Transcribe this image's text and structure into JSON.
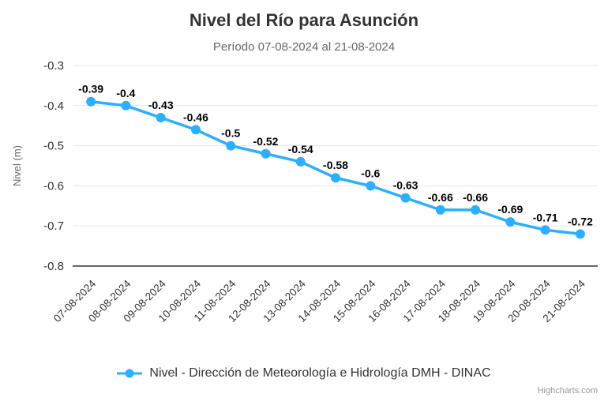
{
  "chart_data": {
    "type": "line",
    "title": "Nivel del Río para Asunción",
    "subtitle": "Período 07-08-2024 al 21-08-2024",
    "ylabel": "Nivel (m)",
    "xlabel": "",
    "categories": [
      "07-08-2024",
      "08-08-2024",
      "09-08-2024",
      "10-08-2024",
      "11-08-2024",
      "12-08-2024",
      "13-08-2024",
      "14-08-2024",
      "15-08-2024",
      "16-08-2024",
      "17-08-2024",
      "18-08-2024",
      "19-08-2024",
      "20-08-2024",
      "21-08-2024"
    ],
    "series": [
      {
        "name": "Nivel - Dirección de Meteorología e Hidrología DMH - DINAC",
        "values": [
          -0.39,
          -0.4,
          -0.43,
          -0.46,
          -0.5,
          -0.52,
          -0.54,
          -0.58,
          -0.6,
          -0.63,
          -0.66,
          -0.66,
          -0.69,
          -0.71,
          -0.72
        ]
      }
    ],
    "ylim": [
      -0.8,
      -0.3
    ],
    "y_ticks": [
      -0.3,
      -0.4,
      -0.5,
      -0.6,
      -0.7,
      -0.8
    ],
    "grid": true,
    "legend_position": "bottom",
    "data_labels_shown": true,
    "x_label_rotation_deg": -45,
    "colors": {
      "series": "#2caffe",
      "grid": "#e6e6e6",
      "axis_line": "#666666",
      "title": "#333333",
      "subtitle": "#666666",
      "tick_label": "#333333",
      "axis_title": "#666666",
      "data_label": "#000000",
      "credit": "#999999"
    },
    "credit_label": "Highcharts.com"
  }
}
